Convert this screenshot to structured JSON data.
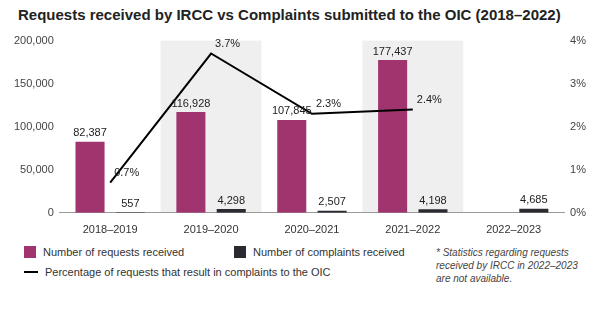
{
  "chart_data": {
    "type": "bar",
    "title": "Requests received by IRCC vs Complaints submitted to the OIC (2018–2022)",
    "categories": [
      "2018–2019",
      "2019–2020",
      "2020–2021",
      "2021–2022",
      "2022–2023"
    ],
    "series": [
      {
        "name": "Number of requests received",
        "type": "bar",
        "color": "#a0346e",
        "values": [
          82387,
          116928,
          107845,
          177437,
          null
        ],
        "value_labels": [
          "82,387",
          "116,928",
          "107,845",
          "177,437",
          null
        ]
      },
      {
        "name": "Number of complaints received",
        "type": "bar",
        "color": "#2a2a30",
        "values": [
          557,
          4298,
          2507,
          4198,
          4685
        ],
        "value_labels": [
          "557",
          "4,298",
          "2,507",
          "4,198",
          "4,685"
        ]
      },
      {
        "name": "Percentage of requests that result in complaints to the OIC",
        "type": "line",
        "color": "#000000",
        "axis": "y2",
        "values": [
          0.7,
          3.7,
          2.3,
          2.4,
          null
        ],
        "value_labels": [
          "0.7%",
          "3.7%",
          "2.3%",
          "2.4%",
          null
        ]
      }
    ],
    "ylim": [
      0,
      200000
    ],
    "yticks": [
      0,
      {
        "value": 50000,
        "label": "50,000"
      },
      {
        "value": 100000,
        "label": "100,000"
      },
      {
        "value": 150000,
        "label": "150,000"
      },
      {
        "value": 200000,
        "label": "200,000"
      }
    ],
    "y2lim": [
      0,
      4
    ],
    "y2ticks": [
      {
        "value": 0,
        "label": "0%"
      },
      {
        "value": 1,
        "label": "1%"
      },
      {
        "value": 2,
        "label": "2%"
      },
      {
        "value": 3,
        "label": "3%"
      },
      {
        "value": 4,
        "label": "4%"
      }
    ],
    "grid": false,
    "legend": "bottom",
    "data_labels": true,
    "annotations": [
      "* Statistics regarding requests received by IRCC in 2022–2023 are not available."
    ]
  }
}
